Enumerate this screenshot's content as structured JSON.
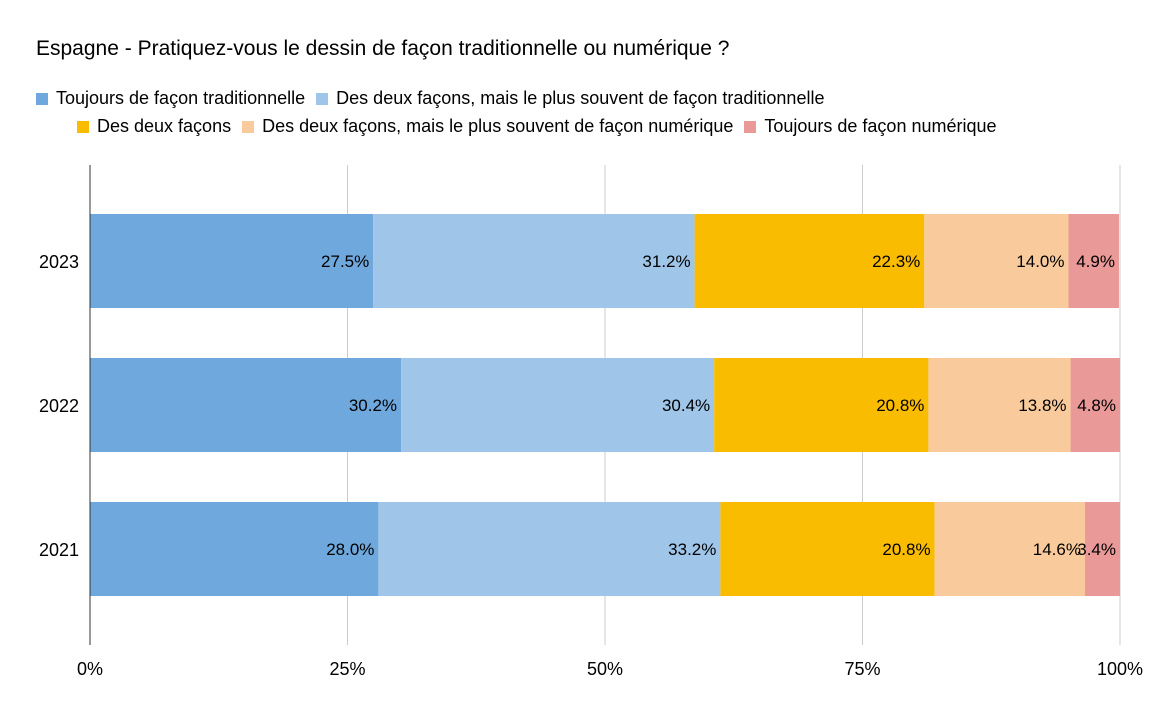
{
  "chart_data": {
    "type": "bar",
    "orientation": "horizontal",
    "stacked": "percent",
    "title": "Espagne - Pratiquez-vous le dessin de façon traditionnelle ou numérique ?",
    "categories": [
      "2023",
      "2022",
      "2021"
    ],
    "x_ticks": [
      "0%",
      "25%",
      "50%",
      "75%",
      "100%"
    ],
    "xlim": [
      0,
      100
    ],
    "grid": true,
    "legend_position": "top",
    "series": [
      {
        "name": "Toujours de façon traditionnelle",
        "color": "#6fa8dc",
        "values": [
          27.5,
          30.2,
          28.0
        ],
        "labels": [
          "27.5%",
          "30.2%",
          "28.0%"
        ]
      },
      {
        "name": "Des deux façons, mais le plus souvent de façon traditionnelle",
        "color": "#9fc5e8",
        "values": [
          31.2,
          30.4,
          33.2
        ],
        "labels": [
          "31.2%",
          "30.4%",
          "33.2%"
        ]
      },
      {
        "name": "Des deux façons",
        "color": "#f9bc00",
        "values": [
          22.3,
          20.8,
          20.8
        ],
        "labels": [
          "22.3%",
          "20.8%",
          "20.8%"
        ]
      },
      {
        "name": "Des deux façons, mais le plus souvent de façon numérique",
        "color": "#f9cb9c",
        "values": [
          14.0,
          13.8,
          14.6
        ],
        "labels": [
          "14.0%",
          "13.8%",
          "14.6%"
        ]
      },
      {
        "name": "Toujours de façon numérique",
        "color": "#ea9999",
        "values": [
          4.9,
          4.8,
          3.4
        ],
        "labels": [
          "4.9%",
          "4.8%",
          "3.4%"
        ]
      }
    ]
  }
}
